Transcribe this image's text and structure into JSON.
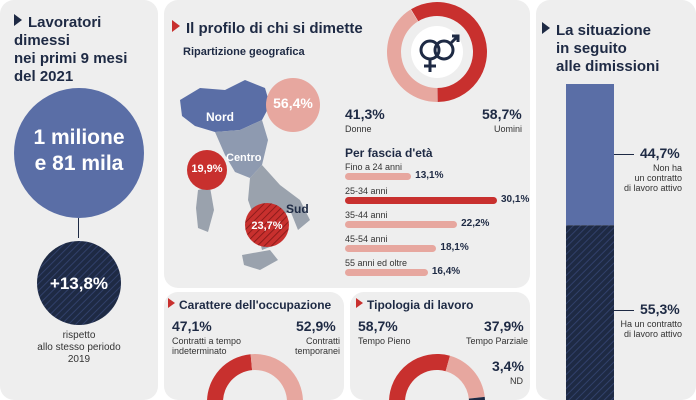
{
  "colors": {
    "navy": "#1e2a44",
    "blue": "#5a6ea6",
    "red": "#c8302e",
    "pink": "#e7a79f",
    "bg": "#eeeeee",
    "grey": "#9aa2ad"
  },
  "left": {
    "title_lines": [
      "Lavoratori dimessi",
      "nei primi 9 mesi",
      "del 2021"
    ],
    "total_lines": [
      "1 milione",
      "e 81 mila"
    ],
    "growth": "+13,8%",
    "note_lines": [
      "rispetto",
      "allo stesso periodo",
      "2019"
    ]
  },
  "profile": {
    "title": "Il profilo di chi si dimette",
    "geo": {
      "subtitle": "Ripartizione geografica",
      "regions": [
        {
          "name": "Nord",
          "value": "56,4%"
        },
        {
          "name": "Centro",
          "value": "19,9%"
        },
        {
          "name": "Sud",
          "value": "23,7%"
        }
      ]
    },
    "gender": {
      "female": {
        "label": "Donne",
        "value": "41,3%"
      },
      "male": {
        "label": "Uomini",
        "value": "58,7%"
      }
    },
    "age": {
      "title": "Per fascia d'età",
      "rows": [
        {
          "label": "Fino a 24 anni",
          "value": "13,1%"
        },
        {
          "label": "25-34 anni",
          "value": "30,1%"
        },
        {
          "label": "35-44 anni",
          "value": "22,2%"
        },
        {
          "label": "45-54 anni",
          "value": "18,1%"
        },
        {
          "label": "55 anni ed oltre",
          "value": "16,4%"
        }
      ]
    }
  },
  "occupation": {
    "title": "Carattere dell'occupazione",
    "items": [
      {
        "value": "47,1%",
        "label": "Contratti a tempo indeterminato"
      },
      {
        "value": "52,9%",
        "label": "Contratti temporanei"
      }
    ]
  },
  "worktype": {
    "title": "Tipologia di lavoro",
    "items": [
      {
        "value": "58,7%",
        "label": "Tempo Pieno"
      },
      {
        "value": "37,9%",
        "label": "Tempo Parziale"
      },
      {
        "value": "3,4%",
        "label": "ND"
      }
    ]
  },
  "situation": {
    "title_lines": [
      "La situazione",
      "in seguito",
      "alle dimissioni"
    ],
    "items": [
      {
        "value": "44,7%",
        "label_lines": [
          "Non ha",
          "un contratto",
          "di lavoro attivo"
        ]
      },
      {
        "value": "55,3%",
        "label_lines": [
          "Ha un contratto",
          "di lavoro attivo"
        ]
      }
    ]
  },
  "chart_data": [
    {
      "type": "pie",
      "title": "Ripartizione geografica",
      "categories": [
        "Nord",
        "Centro",
        "Sud"
      ],
      "values": [
        56.4,
        19.9,
        23.7
      ]
    },
    {
      "type": "pie",
      "categories": [
        "Donne",
        "Uomini"
      ],
      "values": [
        41.3,
        58.7
      ]
    },
    {
      "type": "bar",
      "title": "Per fascia d'età",
      "categories": [
        "Fino a 24 anni",
        "25-34 anni",
        "35-44 anni",
        "45-54 anni",
        "55 anni ed oltre"
      ],
      "values": [
        13.1,
        30.1,
        22.2,
        18.1,
        16.4
      ]
    },
    {
      "type": "pie",
      "title": "Carattere dell'occupazione",
      "categories": [
        "Contratti a tempo indeterminato",
        "Contratti temporanei"
      ],
      "values": [
        47.1,
        52.9
      ]
    },
    {
      "type": "pie",
      "title": "Tipologia di lavoro",
      "categories": [
        "Tempo Pieno",
        "Tempo Parziale",
        "ND"
      ],
      "values": [
        58.7,
        37.9,
        3.4
      ]
    },
    {
      "type": "bar",
      "title": "La situazione in seguito alle dimissioni",
      "categories": [
        "Non ha un contratto di lavoro attivo",
        "Ha un contratto di lavoro attivo"
      ],
      "values": [
        44.7,
        55.3
      ]
    }
  ]
}
